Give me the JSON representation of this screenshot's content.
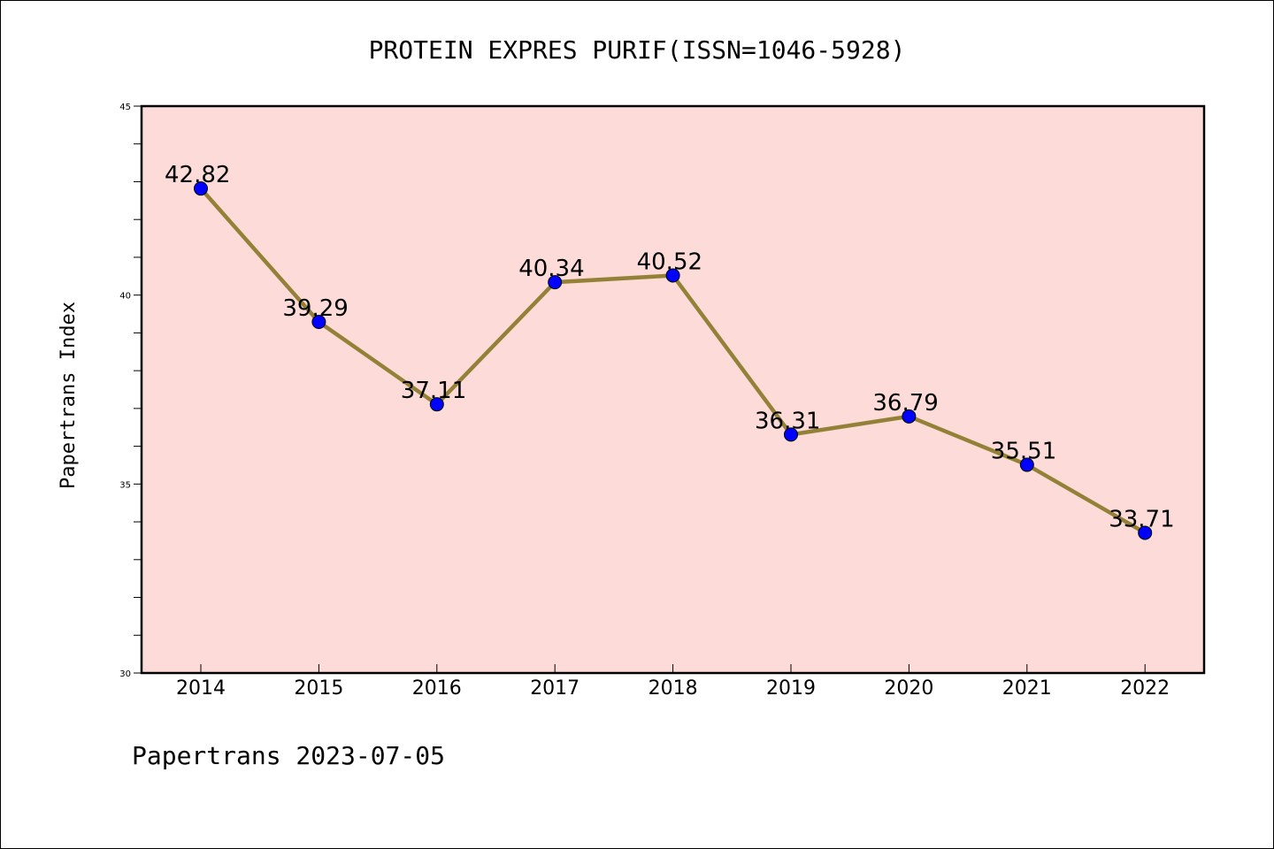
{
  "chart_data": {
    "type": "line",
    "title": "PROTEIN EXPRES PURIF(ISSN=1046-5928)",
    "ylabel": "Papertrans Index",
    "xlabel": "",
    "categories": [
      "2014",
      "2015",
      "2016",
      "2017",
      "2018",
      "2019",
      "2020",
      "2021",
      "2022"
    ],
    "values": [
      42.82,
      39.29,
      37.11,
      40.34,
      40.52,
      36.31,
      36.79,
      35.51,
      33.71
    ],
    "value_labels": [
      "42.82",
      "39.29",
      "37.11",
      "40.34",
      "40.52",
      "36.31",
      "36.79",
      "35.51",
      "33.71"
    ],
    "ylim": [
      30,
      45
    ],
    "yticks": [
      "30",
      "35",
      "40",
      "45"
    ],
    "grid": false,
    "colors": {
      "plot_background": "#fddbd8",
      "line": "#948138",
      "marker": "#0000ff"
    }
  },
  "footer": {
    "text": "Papertrans 2023-07-05"
  }
}
